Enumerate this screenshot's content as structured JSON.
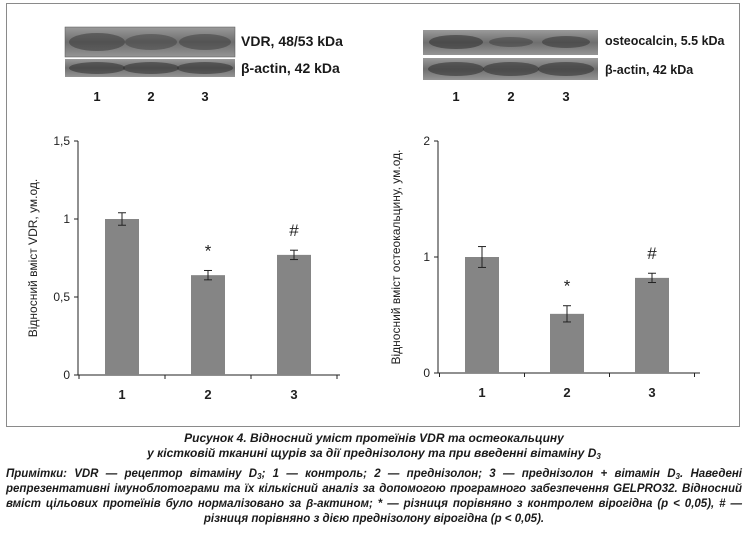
{
  "blots": {
    "left": {
      "label_top": "VDR, 48/53 kDa",
      "label_bottom": "β-actin, 42 kDa",
      "lanes": [
        "1",
        "2",
        "3"
      ]
    },
    "right": {
      "label_top": "osteocalcin, 5.5 kDa",
      "label_bottom": "β-actin, 42 kDa",
      "lanes": [
        "1",
        "2",
        "3"
      ]
    }
  },
  "chart_data": [
    {
      "type": "bar",
      "categories": [
        "1",
        "2",
        "3"
      ],
      "values": [
        1.0,
        0.64,
        0.77
      ],
      "errors": [
        0.04,
        0.03,
        0.03
      ],
      "annotations": [
        "",
        "*",
        "#"
      ],
      "ylabel": "Відносний вміст VDR, ум.од.",
      "ylim": [
        0,
        1.5
      ],
      "yticks": [
        0,
        0.5,
        1,
        1.5
      ],
      "ytick_labels": [
        "0",
        "0,5",
        "1",
        "1,5"
      ],
      "bar_color": "#858585"
    },
    {
      "type": "bar",
      "categories": [
        "1",
        "2",
        "3"
      ],
      "values": [
        1.0,
        0.51,
        0.82
      ],
      "errors": [
        0.09,
        0.07,
        0.04
      ],
      "annotations": [
        "",
        "*",
        "#"
      ],
      "ylabel": "Відносний вміст остеокальцину, ум.од.",
      "ylim": [
        0,
        2
      ],
      "yticks": [
        0,
        1,
        2
      ],
      "ytick_labels": [
        "0",
        "1",
        "2"
      ],
      "bar_color": "#858585"
    }
  ],
  "caption": {
    "line1": "Рисунок 4. Відносний уміст протеїнів VDR та остеокальцину",
    "line2": "у кістковій тканині щурів за дії преднізолону та при введенні вітаміну D",
    "line2_sub": "3"
  },
  "note": {
    "p1": "Примітки: VDR — рецептор вітаміну D",
    "p1_sub": "3",
    "p2": "; 1 — контроль; 2 — преднізолон; 3 — преднізолон + вітамін D",
    "p2_sub": "3",
    "p3": ". Наведені репрезентативні імуноблотограми та їх кількісний аналіз за допомогою програмного забезпечення GELPRO32. Відносний вміст цільових протеїнів було нормалізовано за β-актином; * — різниця порівняно з контролем вірогідна (p < 0,05), # — різниця порівняно з дією преднізолону вірогідна (p < 0,05)."
  }
}
